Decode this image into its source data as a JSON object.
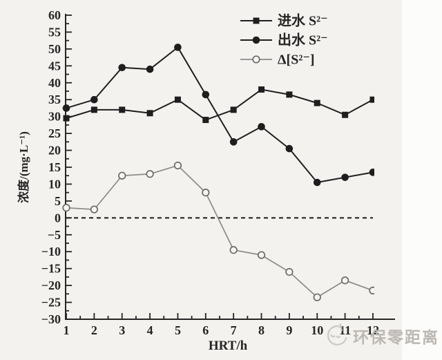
{
  "figure": {
    "watermark": {
      "text": "环保零距离",
      "icon": "doodle-face-icon",
      "color": "#bcb8b3"
    },
    "colors": {
      "background": "#f3f2ef",
      "right_strip": "#fcfcfb",
      "ink": "#262424",
      "delta_gray": "#8a8a8a"
    }
  },
  "chart_data": {
    "type": "line",
    "title": "",
    "xlabel": "HRT/h",
    "ylabel": "浓度/(mg·L⁻¹)",
    "x": [
      1,
      2,
      3,
      4,
      5,
      6,
      7,
      8,
      9,
      10,
      11,
      12
    ],
    "x_ticks": [
      1,
      2,
      3,
      4,
      5,
      6,
      7,
      8,
      9,
      10,
      11,
      12
    ],
    "y_ticks": [
      -30,
      -25,
      -20,
      -15,
      -10,
      -5,
      0,
      5,
      10,
      15,
      20,
      25,
      30,
      35,
      40,
      45,
      50,
      55,
      60
    ],
    "xlim": [
      1,
      12
    ],
    "ylim": [
      -30,
      60
    ],
    "grid": false,
    "legend_position": "upper-center-inside",
    "zero_line": {
      "y": 0,
      "style": "dashed"
    },
    "axis_color": "#262424",
    "series": [
      {
        "name": "进水 S²⁻",
        "marker": "filled-square",
        "color": "#1f1e1e",
        "values": [
          29.5,
          32,
          32,
          31,
          35,
          29,
          32,
          38,
          36.5,
          34,
          30.5,
          35
        ]
      },
      {
        "name": "出水 S²⁻",
        "marker": "filled-circle",
        "color": "#1f1e1e",
        "values": [
          32.5,
          35,
          44.5,
          44,
          50.5,
          36.5,
          22.5,
          27,
          20.5,
          10.5,
          12,
          13.5
        ]
      },
      {
        "name": "Δ[S²⁻]",
        "marker": "open-circle",
        "color": "#8a8a8a",
        "values": [
          3,
          2.5,
          12.5,
          13,
          15.5,
          7.5,
          -9.5,
          -11,
          -16,
          -23.5,
          -18.5,
          -21.5
        ]
      }
    ]
  }
}
